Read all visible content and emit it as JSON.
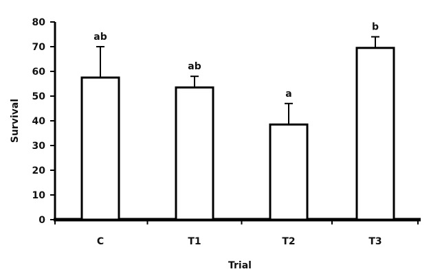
{
  "chart_data": {
    "type": "bar",
    "title": "",
    "xlabel": "Trial",
    "ylabel": "Survival",
    "categories": [
      "C",
      "T1",
      "T2",
      "T3"
    ],
    "values": [
      57.5,
      53.5,
      38.5,
      69.5
    ],
    "error_upper": [
      70,
      58,
      47,
      74
    ],
    "significance_labels": [
      "ab",
      "ab",
      "a",
      "b"
    ],
    "ylim": [
      0,
      80
    ],
    "yticks": [
      0,
      10,
      20,
      30,
      40,
      50,
      60,
      70,
      80
    ],
    "grid": false,
    "legend": "none",
    "colors": {
      "bar_fill": "#ffffff",
      "bar_stroke": "#000000",
      "axis": "#000000",
      "text": "#111111"
    }
  }
}
